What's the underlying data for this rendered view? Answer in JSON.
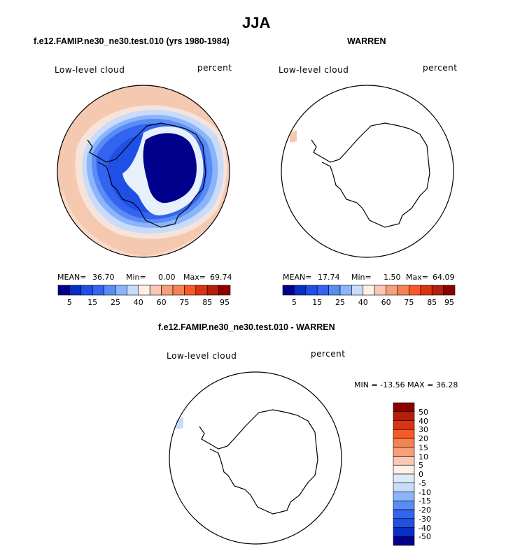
{
  "figure": {
    "title": "JJA"
  },
  "panels": [
    {
      "id": "model",
      "title": "f.e12.FAMIP.ne30_ne30.test.010 (yrs 1980-1984)",
      "variable": "Low-level cloud",
      "units": "percent",
      "stats": {
        "mean_label": "MEAN=",
        "mean": "36.70",
        "min_label": "Min=",
        "min": "0.00",
        "max_label": "Max=",
        "max": "69.74"
      }
    },
    {
      "id": "obs",
      "title": "WARREN",
      "variable": "Low-level cloud",
      "units": "percent",
      "stats": {
        "mean_label": "MEAN=",
        "mean": "17.74",
        "min_label": "Min=",
        "min": "1.50",
        "max_label": "Max=",
        "max": "64.09"
      }
    },
    {
      "id": "diff",
      "title": "f.e12.FAMIP.ne30_ne30.test.010 - WARREN",
      "variable": "Low-level cloud",
      "units": "percent",
      "stats_text": "MIN = -13.56 MAX =  36.28"
    }
  ],
  "colorbar_main": {
    "tick_labels": [
      "5",
      "15",
      "25",
      "40",
      "60",
      "75",
      "85",
      "95"
    ],
    "colors": [
      "#00008c",
      "#0a2dc8",
      "#1e50e6",
      "#3264f0",
      "#5a8cf5",
      "#8cb4fa",
      "#c8dcfa",
      "#fff0e6",
      "#fac8b4",
      "#f5a078",
      "#f58250",
      "#f55a28",
      "#dc3214",
      "#b41e0a",
      "#8c0000"
    ]
  },
  "colorbar_diff": {
    "tick_labels": [
      "50",
      "40",
      "30",
      "20",
      "15",
      "10",
      "5",
      "0",
      "-5",
      "-10",
      "-15",
      "-20",
      "-30",
      "-40",
      "-50"
    ],
    "colors": [
      "#8c0000",
      "#b41e0a",
      "#dc3214",
      "#f55a28",
      "#f58250",
      "#f5a078",
      "#fac8b4",
      "#fff0e6",
      "#dceaf8",
      "#c8dcfa",
      "#8cb4fa",
      "#5a8cf5",
      "#3264f0",
      "#1e50e6",
      "#0a2dc8",
      "#00008c"
    ]
  }
}
